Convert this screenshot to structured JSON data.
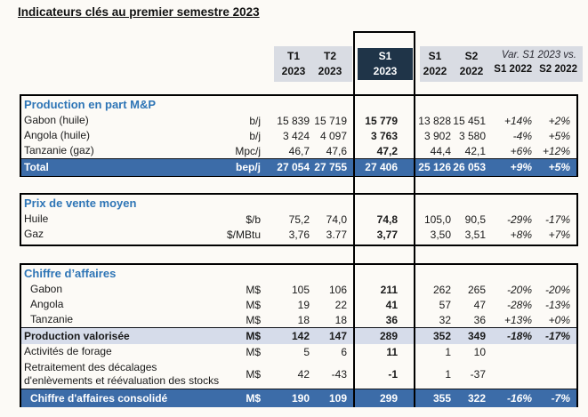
{
  "title": "Indicateurs clés au premier semestre 2023",
  "colors": {
    "page": "#fcfaf6",
    "hdrgray": "#d9dce3",
    "navy": "#1f3448",
    "rowblue": "#3c6ca8",
    "lav": "#d6dcea",
    "secblue": "#2e75b6"
  },
  "header": {
    "t1": "T1\n2023",
    "t2": "T2\n2023",
    "s1": "S1\n2023",
    "s1_prev": "S1\n2022",
    "s2_prev": "S2\n2022",
    "var_title": "Var. S1 2023 vs.",
    "var_col1": "S1 2022",
    "var_col2": "S2 2022"
  },
  "sections": [
    {
      "title": "Production en part M&P",
      "rows": [
        {
          "label": "Gabon (huile)",
          "unit": "b/j",
          "t1": "15 839",
          "t2": "15 719",
          "s1": "15 779",
          "s1_22": "13 828",
          "s2_22": "15 451",
          "v1": "+14%",
          "v2": "+2%",
          "type": "data"
        },
        {
          "label": "Angola (huile)",
          "unit": "b/j",
          "t1": "3 424",
          "t2": "4 097",
          "s1": "3 763",
          "s1_22": "3 902",
          "s2_22": "3 580",
          "v1": "-4%",
          "v2": "+5%",
          "type": "data"
        },
        {
          "label": "Tanzanie (gaz)",
          "unit": "Mpc/j",
          "t1": "46,7",
          "t2": "47,6",
          "s1": "47,2",
          "s1_22": "44,4",
          "s2_22": "42,1",
          "v1": "+6%",
          "v2": "+12%",
          "type": "data"
        },
        {
          "label": "Total",
          "unit": "bep/j",
          "t1": "27 054",
          "t2": "27 755",
          "s1": "27 406",
          "s1_22": "25 126",
          "s2_22": "26 053",
          "v1": "+9%",
          "v2": "+5%",
          "type": "total"
        }
      ]
    },
    {
      "title": "Prix de vente moyen",
      "rows": [
        {
          "label": "Huile",
          "unit": "$/b",
          "t1": "75,2",
          "t2": "74,0",
          "s1": "74,8",
          "s1_22": "105,0",
          "s2_22": "90,5",
          "v1": "-29%",
          "v2": "-17%",
          "type": "data"
        },
        {
          "label": "Gaz",
          "unit": "$/MBtu",
          "t1": "3,76",
          "t2": "3.77",
          "s1": "3,77",
          "s1_22": "3,50",
          "s2_22": "3,51",
          "v1": "+8%",
          "v2": "+7%",
          "type": "data"
        }
      ]
    },
    {
      "title": "Chiffre d’affaires",
      "rows": [
        {
          "label": "Gabon",
          "unit": "M$",
          "t1": "105",
          "t2": "106",
          "s1": "211",
          "s1_22": "262",
          "s2_22": "265",
          "v1": "-20%",
          "v2": "-20%",
          "type": "data",
          "indent": true
        },
        {
          "label": "Angola",
          "unit": "M$",
          "t1": "19",
          "t2": "22",
          "s1": "41",
          "s1_22": "57",
          "s2_22": "47",
          "v1": "-28%",
          "v2": "-13%",
          "type": "data",
          "indent": true
        },
        {
          "label": "Tanzanie",
          "unit": "M$",
          "t1": "18",
          "t2": "18",
          "s1": "36",
          "s1_22": "32",
          "s2_22": "36",
          "v1": "+13%",
          "v2": "+0%",
          "type": "data",
          "indent": true
        },
        {
          "label": "Production valorisée",
          "unit": "M$",
          "t1": "142",
          "t2": "147",
          "s1": "289",
          "s1_22": "352",
          "s2_22": "349",
          "v1": "-18%",
          "v2": "-17%",
          "type": "subtotal"
        },
        {
          "label": "Activités de forage",
          "unit": "M$",
          "t1": "5",
          "t2": "6",
          "s1": "11",
          "s1_22": "1",
          "s2_22": "10",
          "v1": "",
          "v2": "",
          "type": "data"
        },
        {
          "label": "Retraitement des décalages\nd'enlèvements et réévaluation des stocks",
          "unit": "M$",
          "t1": "42",
          "t2": "-43",
          "s1": "-1",
          "s1_22": "1",
          "s2_22": "-37",
          "v1": "",
          "v2": "",
          "type": "data",
          "tall": true
        },
        {
          "label": "Chiffre d'affaires consolidé",
          "unit": "M$",
          "t1": "190",
          "t2": "109",
          "s1": "299",
          "s1_22": "355",
          "s2_22": "322",
          "v1": "-16%",
          "v2": "-7%",
          "type": "total",
          "grand": true,
          "indent": true
        }
      ]
    }
  ]
}
